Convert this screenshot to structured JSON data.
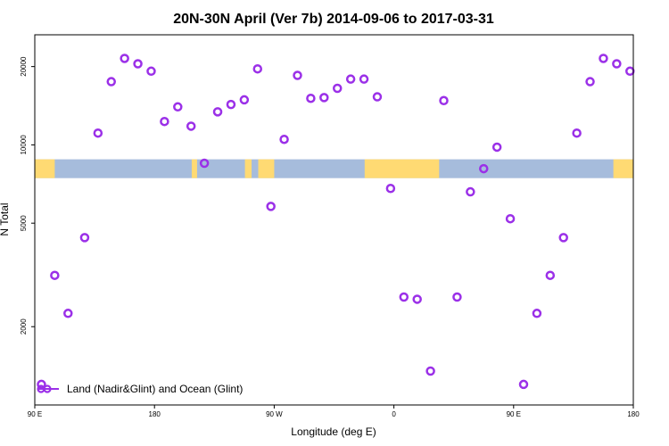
{
  "chart_data": {
    "type": "scatter",
    "title": "20N-30N April (Ver 7b)   2014-09-06 to 2017-03-31",
    "xlabel": "Longitude (deg E)",
    "ylabel": "N Total",
    "x_ticks": [
      {
        "value": 90,
        "label": "90 E"
      },
      {
        "value": 180,
        "label": "180"
      },
      {
        "value": 270,
        "label": "90 W"
      },
      {
        "value": 360,
        "label": "0"
      },
      {
        "value": 450,
        "label": "90 E"
      },
      {
        "value": 540,
        "label": "180"
      }
    ],
    "y_ticks": [
      {
        "value": 2000,
        "label": "2000"
      },
      {
        "value": 5000,
        "label": "5000"
      },
      {
        "value": 10000,
        "label": "10000"
      },
      {
        "value": 20000,
        "label": "20000"
      }
    ],
    "xlim": [
      90,
      540
    ],
    "ylim": [
      1000,
      26500
    ],
    "y_scale": "log",
    "legend": {
      "label": "Land (Nadir&Glint) and Ocean (Glint)",
      "position": "bottom-left"
    },
    "colors": {
      "marker": "#9b30e8",
      "land": "#ffda73",
      "ocean": "#a6bcdc"
    },
    "map_strip": {
      "y_top": 8800,
      "y_bottom": 7450
    },
    "series": [
      {
        "name": "Land (Nadir&Glint) and Ocean (Glint)",
        "x": [
          95,
          105,
          115,
          127.5,
          137.5,
          147.5,
          157.5,
          167.5,
          177.5,
          187.5,
          197.5,
          207.5,
          217.5,
          227.5,
          237.5,
          247.5,
          257.5,
          267.5,
          277.5,
          287.5,
          297.5,
          307.5,
          317.5,
          327.5,
          337.5,
          347.5,
          357.5,
          367.5,
          377.5,
          387.5,
          397.5,
          407.5,
          417.5,
          427.5,
          437.5,
          447.5,
          457.5,
          467.5,
          477.5,
          487.5,
          497.5,
          507.5,
          517.5,
          527.5,
          537.5
        ],
        "y": [
          1200,
          3150,
          2250,
          4400,
          11100,
          17500,
          21500,
          20500,
          19200,
          12300,
          14000,
          11800,
          8500,
          13400,
          14300,
          14900,
          19600,
          5800,
          10500,
          18500,
          15100,
          15200,
          16500,
          17900,
          17900,
          15300,
          6800,
          2600,
          2550,
          1350,
          14800,
          2600,
          6600,
          8100,
          9800,
          5200,
          1200,
          2250,
          3150,
          4400,
          11100,
          17500,
          21500,
          20500,
          19200
        ]
      }
    ]
  }
}
